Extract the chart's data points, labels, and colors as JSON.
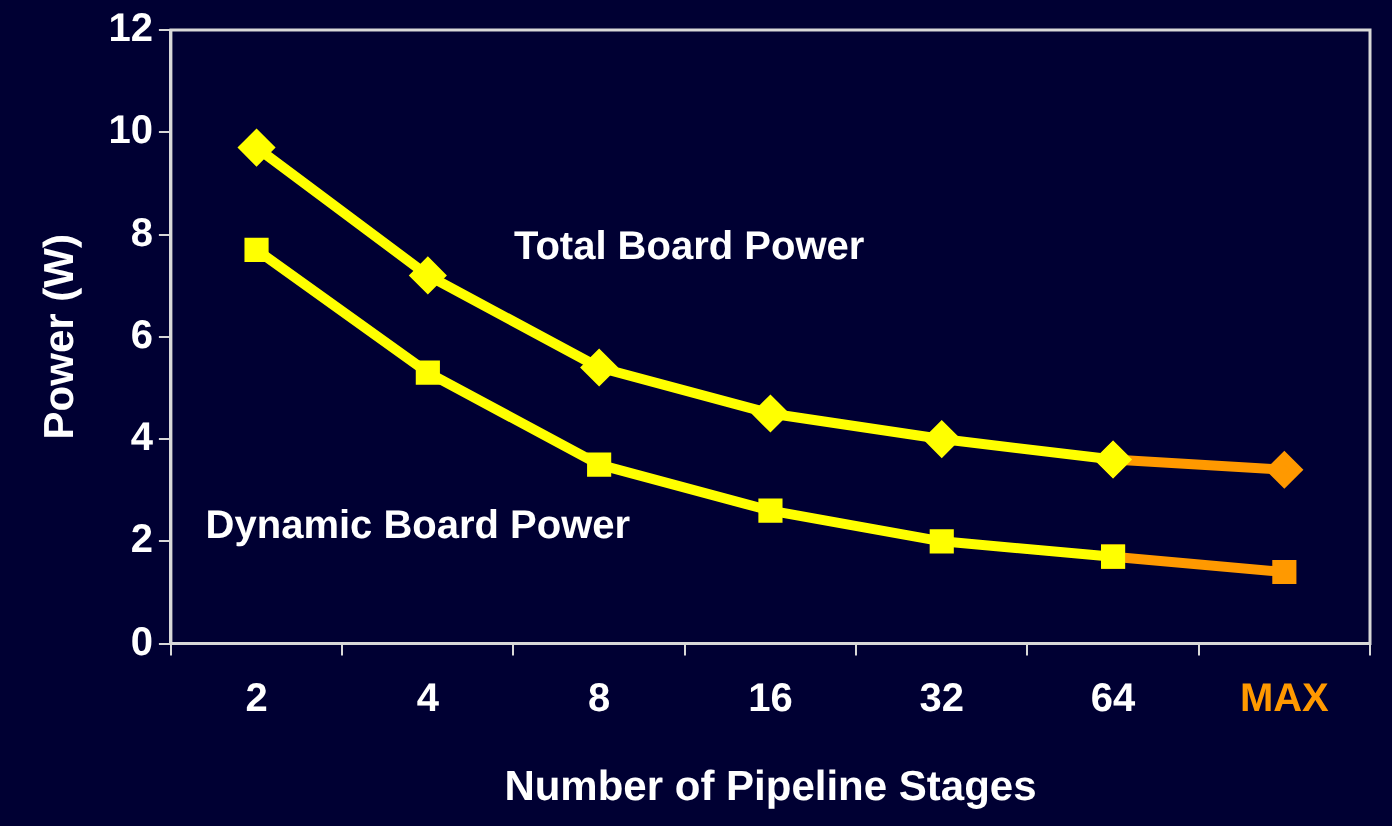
{
  "chart_data": {
    "type": "line",
    "xlabel": "Number of Pipeline Stages",
    "ylabel": "Power (W)",
    "categories": [
      "2",
      "4",
      "8",
      "16",
      "32",
      "64",
      "MAX"
    ],
    "series": [
      {
        "name": "Total Board Power",
        "color": "#ffff00",
        "marker": "diamond",
        "values": [
          9.7,
          7.2,
          5.4,
          4.5,
          4.0,
          3.6,
          null
        ]
      },
      {
        "name": "Dynamic Board Power",
        "color": "#ffff00",
        "marker": "square",
        "values": [
          7.7,
          5.3,
          3.5,
          2.6,
          2.0,
          1.7,
          null
        ]
      },
      {
        "color": "#ff9900",
        "marker": "diamond",
        "values": [
          null,
          null,
          null,
          null,
          null,
          3.6,
          3.4
        ]
      },
      {
        "color": "#ff9900",
        "marker": "square",
        "values": [
          null,
          null,
          null,
          null,
          null,
          1.7,
          1.4
        ]
      }
    ],
    "ylim": [
      0,
      12
    ],
    "yticks": [
      0,
      2,
      4,
      6,
      8,
      10,
      12
    ],
    "grid": false,
    "legend": false
  }
}
